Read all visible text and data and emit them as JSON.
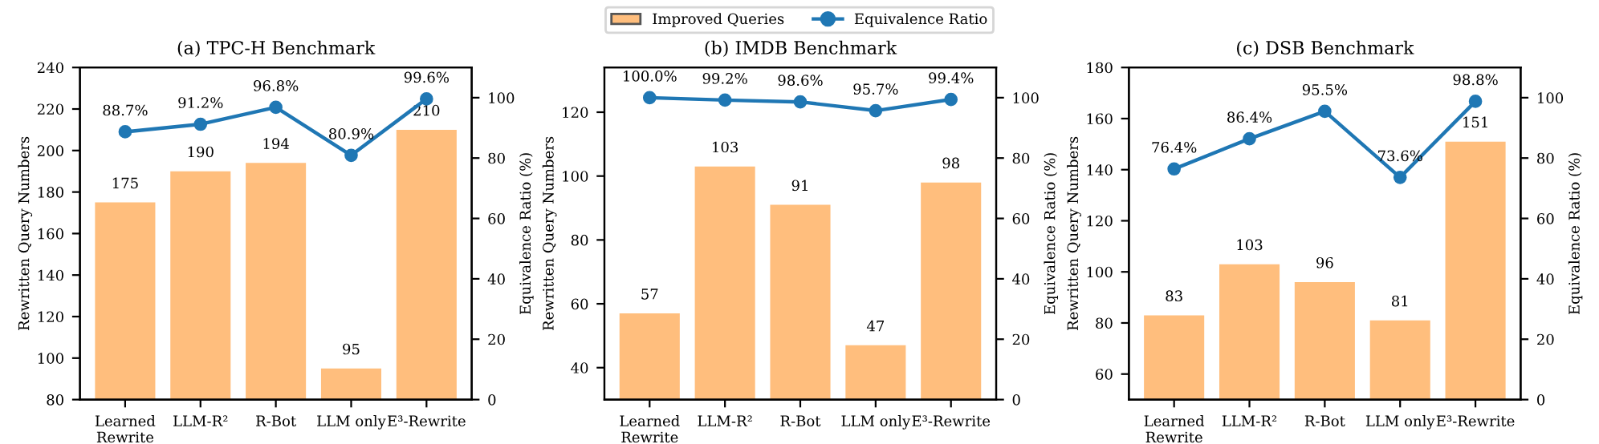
{
  "chart_data": [
    {
      "type": "bar",
      "title": "(a) TPC-H Benchmark",
      "ylabel": "Rewritten Query Numbers",
      "y2label": "Equivalence Ratio (%)",
      "categories": [
        "Learned\nRewrite",
        "LLM-R²",
        "R-Bot",
        "LLM only",
        "E³-Rewrite"
      ],
      "ylim": [
        80,
        240
      ],
      "yticks": [
        80,
        100,
        120,
        140,
        160,
        180,
        200,
        220,
        240
      ],
      "y2lim": [
        0,
        110
      ],
      "y2ticks": [
        0,
        20,
        40,
        60,
        80,
        100
      ],
      "grid": false,
      "legend": "top",
      "series": [
        {
          "name": "Improved Queries",
          "color": "#ffbe7d",
          "values": [
            175,
            190,
            194,
            95,
            210
          ],
          "data_labels": true
        },
        {
          "name": "Equivalence Ratio",
          "type": "line",
          "axis": "y2",
          "color": "#1f77b4",
          "marker": "circle",
          "values": [
            88.7,
            91.2,
            96.8,
            80.9,
            99.6
          ],
          "value_labels": [
            "88.7%",
            "91.2%",
            "96.8%",
            "80.9%",
            "99.6%"
          ]
        }
      ]
    },
    {
      "type": "bar",
      "title": "(b) IMDB Benchmark",
      "ylabel": "Rewritten Query Numbers",
      "y2label": "Equivalence Ratio (%)",
      "categories": [
        "Learned\nRewrite",
        "LLM-R²",
        "R-Bot",
        "LLM only",
        "E³-Rewrite"
      ],
      "ylim": [
        30,
        134
      ],
      "yticks": [
        40,
        60,
        80,
        100,
        120
      ],
      "y2lim": [
        0,
        110
      ],
      "y2ticks": [
        0,
        20,
        40,
        60,
        80,
        100
      ],
      "grid": false,
      "legend": "top",
      "series": [
        {
          "name": "Improved Queries",
          "color": "#ffbe7d",
          "values": [
            57,
            103,
            91,
            47,
            98
          ],
          "data_labels": true
        },
        {
          "name": "Equivalence Ratio",
          "type": "line",
          "axis": "y2",
          "color": "#1f77b4",
          "marker": "circle",
          "values": [
            100.0,
            99.2,
            98.6,
            95.7,
            99.4
          ],
          "value_labels": [
            "100.0%",
            "99.2%",
            "98.6%",
            "95.7%",
            "99.4%"
          ]
        }
      ]
    },
    {
      "type": "bar",
      "title": "(c) DSB Benchmark",
      "ylabel": "Rewritten Query Numbers",
      "y2label": "Equivalence Ratio (%)",
      "categories": [
        "Learned\nRewrite",
        "LLM-R²",
        "R-Bot",
        "LLM only",
        "E³-Rewrite"
      ],
      "ylim": [
        50,
        180
      ],
      "yticks": [
        60,
        80,
        100,
        120,
        140,
        160,
        180
      ],
      "y2lim": [
        0,
        110
      ],
      "y2ticks": [
        0,
        20,
        40,
        60,
        80,
        100
      ],
      "grid": false,
      "legend": "top",
      "series": [
        {
          "name": "Improved Queries",
          "color": "#ffbe7d",
          "values": [
            83,
            103,
            96,
            81,
            151
          ],
          "data_labels": true
        },
        {
          "name": "Equivalence Ratio",
          "type": "line",
          "axis": "y2",
          "color": "#1f77b4",
          "marker": "circle",
          "values": [
            76.4,
            86.4,
            95.5,
            73.6,
            98.8
          ],
          "value_labels": [
            "76.4%",
            "86.4%",
            "95.5%",
            "73.6%",
            "98.8%"
          ]
        }
      ]
    }
  ]
}
